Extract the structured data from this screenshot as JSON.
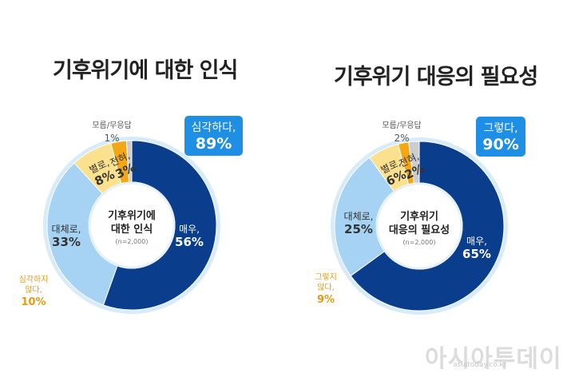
{
  "chart_data": [
    {
      "type": "pie",
      "title": "기후위기에 대한 인식",
      "center_label": [
        "기후위기에",
        "대한 인식"
      ],
      "sample": "(n=2,000)",
      "badge": {
        "label": "심각하다,",
        "value": "89%"
      },
      "slices": [
        {
          "name": "매우,",
          "value": 56,
          "pct": "56%",
          "color": "#0a3d8c"
        },
        {
          "name": "대체로,",
          "value": 33,
          "pct": "33%",
          "color": "#a6d3f3"
        },
        {
          "name": "별로,",
          "value": 8,
          "pct": "8%",
          "color": "#fbe08d"
        },
        {
          "name": "전혀,",
          "value": 3,
          "pct": "3%",
          "color": "#f4a712"
        },
        {
          "name": "모름/무응답",
          "value": 1,
          "pct": "1%",
          "color": "#cccccc"
        }
      ],
      "negative_label": [
        "심각하지",
        "않다,"
      ],
      "negative_value": "10%"
    },
    {
      "type": "pie",
      "title": "기후위기 대응의 필요성",
      "center_label": [
        "기후위기",
        "대응의 필요성"
      ],
      "sample": "(n=2,000)",
      "badge": {
        "label": "그렇다,",
        "value": "90%"
      },
      "slices": [
        {
          "name": "매우,",
          "value": 65,
          "pct": "65%",
          "color": "#0a3d8c"
        },
        {
          "name": "대체로,",
          "value": 25,
          "pct": "25%",
          "color": "#a6d3f3"
        },
        {
          "name": "별로,",
          "value": 6,
          "pct": "6%",
          "color": "#fbe08d"
        },
        {
          "name": "전혀,",
          "value": 2,
          "pct": "2%",
          "color": "#f4a712"
        },
        {
          "name": "모름/무응답",
          "value": 2,
          "pct": "2%",
          "color": "#cccccc"
        }
      ],
      "negative_label": [
        "그렇지",
        "않다,"
      ],
      "negative_value": "9%"
    }
  ],
  "watermark": {
    "text": "아시아투데이",
    "sub": "asiatoday.co.kr"
  }
}
